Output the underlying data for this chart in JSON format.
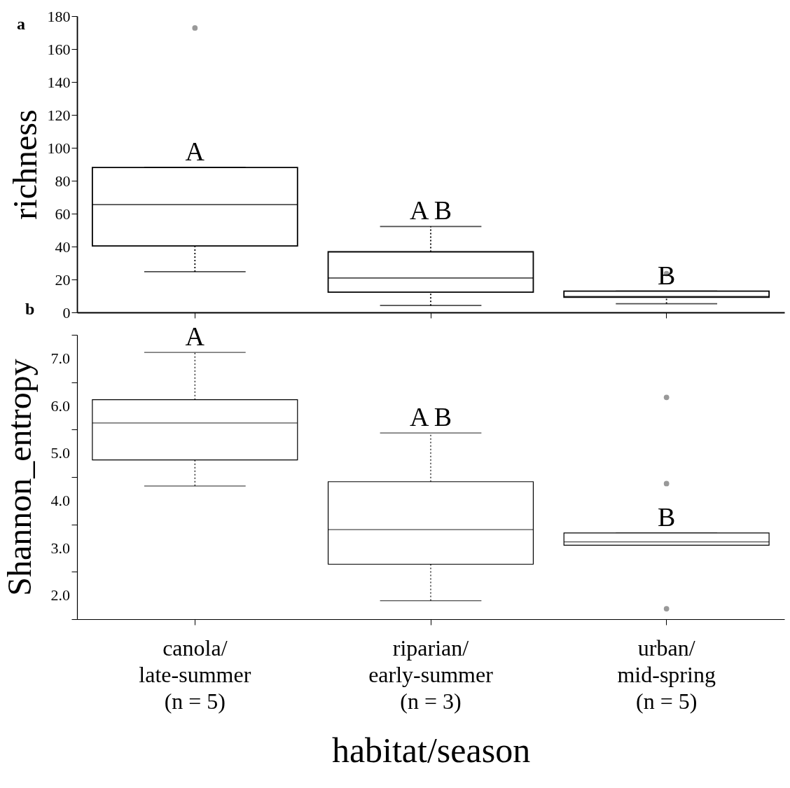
{
  "chart_data": [
    {
      "type": "box",
      "ylabel": "richness",
      "categories": [
        "canola/\nlate-summer\n(n = 5)",
        "riparian/\nearly-summer\n(n = 3)",
        "urban/\nmid-spring\n(n = 5)"
      ],
      "ylim": [
        0,
        180
      ],
      "yticks": [
        0,
        20,
        40,
        60,
        80,
        100,
        120,
        140,
        160,
        180
      ],
      "tick_labels": "y",
      "boxes": [
        {
          "low": 24.7,
          "q1": 40.4,
          "median": 65.5,
          "q3": 88,
          "high": 88,
          "outliers": [
            172.8
          ]
        },
        {
          "low": 4.2,
          "q1": 12.3,
          "median": 20.9,
          "q3": 36.8,
          "high": 52.2
        },
        {
          "low": 5.3,
          "q1": 9.2,
          "median": 9.6,
          "q3": 12.9,
          "high": 12.9,
          "outliers": [
            23.6
          ]
        }
      ],
      "annotations": [
        "a",
        {
          "text": "A",
          "x": "canola/\nlate-summer\n(n = 5)",
          "y": 88
        },
        {
          "text": "A B",
          "x": "riparian/\nearly-summer\n(n = 3)",
          "y": 52.2
        },
        {
          "text": "B",
          "x": "urban/\nmid-spring\n(n = 5)",
          "y": 12.9
        }
      ]
    },
    {
      "type": "box",
      "ylabel": "Shannon_entropy",
      "xlabel": "habitat/season",
      "categories": [
        "canola/\nlate-summer\n(n = 5)",
        "riparian/\nearly-summer\n(n = 3)",
        "urban/\nmid-spring\n(n = 5)"
      ],
      "ylim": [
        1.5,
        7.5
      ],
      "yticks": [
        {
          "value": 1.5,
          "label": null
        },
        {
          "value": 2,
          "label": "2.0"
        },
        {
          "value": 2.5,
          "label": null
        },
        {
          "value": 3,
          "label": "3.0"
        },
        {
          "value": 3.5,
          "label": null
        },
        {
          "value": 4,
          "label": "4.0"
        },
        {
          "value": 4.5,
          "label": null
        },
        {
          "value": 5,
          "label": "5.0"
        },
        {
          "value": 5.5,
          "label": null
        },
        {
          "value": 6,
          "label": "6.0"
        },
        {
          "value": 6.5,
          "label": null
        },
        {
          "value": 7,
          "label": "7.0"
        },
        {
          "value": 7.5,
          "label": null
        }
      ],
      "boxes": [
        {
          "low": 4.31,
          "q1": 4.86,
          "median": 5.64,
          "q3": 6.13,
          "high": 7.13
        },
        {
          "low": 1.89,
          "q1": 2.66,
          "median": 3.39,
          "q3": 4.4,
          "high": 5.43
        },
        {
          "low": 3.06,
          "q1": 3.06,
          "median": 3.13,
          "q3": 3.32,
          "high": 3.32,
          "outliers": [
            6.18,
            4.36,
            1.72
          ]
        }
      ],
      "annotations": [
        "b",
        {
          "text": "A",
          "x": "canola/\nlate-summer\n(n = 5)",
          "y": 7.13
        },
        {
          "text": "A B",
          "x": "riparian/\nearly-summer\n(n = 3)",
          "y": 5.43
        },
        {
          "text": "B",
          "x": "urban/\nmid-spring\n(n = 5)",
          "y": 3.32
        }
      ]
    }
  ]
}
